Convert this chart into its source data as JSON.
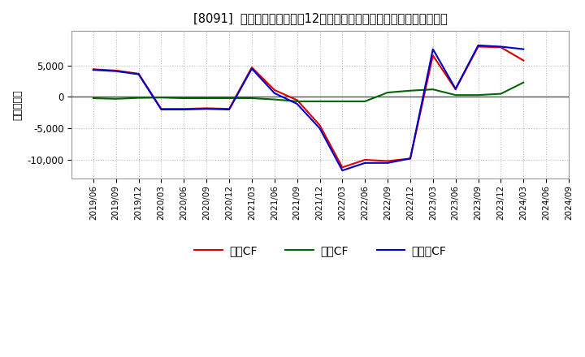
{
  "title": "[8091]  キャッシュフローの12か月移動合計の対前年同期増減額の推移",
  "ylabel": "（百万円）",
  "background_color": "#ffffff",
  "plot_background": "#ffffff",
  "grid_color": "#bbbbbb",
  "x_labels": [
    "2019/06",
    "2019/09",
    "2019/12",
    "2020/03",
    "2020/06",
    "2020/09",
    "2020/12",
    "2021/03",
    "2021/06",
    "2021/09",
    "2021/12",
    "2022/03",
    "2022/06",
    "2022/09",
    "2022/12",
    "2023/03",
    "2023/06",
    "2023/09",
    "2023/12",
    "2024/03",
    "2024/06",
    "2024/09"
  ],
  "operating_cf": [
    4400,
    4200,
    3700,
    -1900,
    -1900,
    -1800,
    -1900,
    4700,
    1100,
    -500,
    -4500,
    -11200,
    -10000,
    -10200,
    -9800,
    6600,
    1200,
    8000,
    7900,
    5800,
    null,
    null
  ],
  "investing_cf": [
    -200,
    -300,
    -150,
    -100,
    -200,
    -200,
    -200,
    -200,
    -400,
    -700,
    -700,
    -700,
    -700,
    700,
    1000,
    1200,
    300,
    300,
    500,
    2300,
    null,
    null
  ],
  "free_cf": [
    4300,
    4100,
    3600,
    -2000,
    -2000,
    -1900,
    -2000,
    4500,
    600,
    -1100,
    -5000,
    -11700,
    -10500,
    -10500,
    -9800,
    7600,
    1300,
    8200,
    8000,
    7600,
    null,
    null
  ],
  "operating_color": "#dd0000",
  "investing_color": "#006600",
  "free_color": "#0000cc",
  "ylim": [
    -13000,
    10500
  ],
  "yticks": [
    -10000,
    -5000,
    0,
    5000
  ],
  "legend_labels": [
    "営業CF",
    "投資CF",
    "フリーCF"
  ]
}
